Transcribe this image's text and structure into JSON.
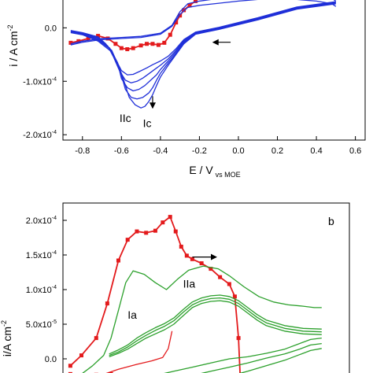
{
  "chart_data": [
    {
      "type": "line",
      "panel_label": "",
      "ylabel": "i / A cm",
      "ylabel_sup": "-2",
      "xlabel": "E / V",
      "xlabel_sub": "vs MOE",
      "xlim": [
        -0.9,
        0.65
      ],
      "ylim": [
        -0.00021,
        5.5e-05
      ],
      "x_ticks": [
        {
          "v": -0.8,
          "label": "-0.8"
        },
        {
          "v": -0.6,
          "label": "-0.6"
        },
        {
          "v": -0.4,
          "label": "-0.4"
        },
        {
          "v": -0.2,
          "label": "-0.2"
        },
        {
          "v": 0.0,
          "label": "0.0"
        },
        {
          "v": 0.2,
          "label": "0.2"
        },
        {
          "v": 0.4,
          "label": "0.4"
        },
        {
          "v": 0.6,
          "label": "0.6"
        }
      ],
      "y_ticks": [
        {
          "v": 0.0,
          "base": "0.0",
          "exp": ""
        },
        {
          "v": -0.0001,
          "base": "-1.0x10",
          "exp": "-4"
        },
        {
          "v": -0.0002,
          "base": "-2.0x10",
          "exp": "-4"
        }
      ],
      "annotations": [
        {
          "text": "IIc",
          "x": -0.61,
          "y": -0.000176
        },
        {
          "text": "Ic",
          "x": -0.49,
          "y": -0.000186
        }
      ],
      "arrows": [
        {
          "x1": -0.04,
          "y1": -2.7e-05,
          "x2": -0.13,
          "y2": -2.7e-05
        },
        {
          "x1": -0.44,
          "y1": -0.000128,
          "x2": -0.44,
          "y2": -0.00015
        }
      ],
      "series": [
        {
          "color": "#e31a1c",
          "marker": "square",
          "x": [
            -0.86,
            -0.82,
            -0.77,
            -0.72,
            -0.67,
            -0.63,
            -0.6,
            -0.57,
            -0.54,
            -0.5,
            -0.47,
            -0.44,
            -0.41,
            -0.38,
            -0.35,
            -0.32,
            -0.3,
            -0.28,
            -0.25,
            -0.22,
            -0.2
          ],
          "y": [
            -2.8e-05,
            -2.5e-05,
            -2e-05,
            -1.5e-05,
            -2e-05,
            -3e-05,
            -3.8e-05,
            -4e-05,
            -3.8e-05,
            -3.3e-05,
            -3e-05,
            -3e-05,
            -3.2e-05,
            -2.8e-05,
            -1.3e-05,
            1e-05,
            2.3e-05,
            3.3e-05,
            4.2e-05,
            5e-05,
            5.6e-05
          ]
        },
        {
          "color": "#1f2fd8",
          "marker": "",
          "x": [
            -0.86,
            -0.8,
            -0.72,
            -0.65,
            -0.6,
            -0.56,
            -0.53,
            -0.5,
            -0.48,
            -0.46,
            -0.44,
            -0.42,
            -0.4,
            -0.36,
            -0.32,
            -0.28,
            -0.22,
            -0.1,
            0.1,
            0.3,
            0.5
          ],
          "y": [
            -9e-06,
            -1.3e-05,
            -2.5e-05,
            -4.5e-05,
            -8.5e-05,
            -0.00013,
            -0.000144,
            -0.00015,
            -0.000147,
            -0.000138,
            -0.000125,
            -0.000108,
            -9.2e-05,
            -7e-05,
            -5e-05,
            -3e-05,
            -1.2e-05,
            -3e-06,
            1.5e-05,
            3.5e-05,
            4.5e-05
          ]
        },
        {
          "color": "#1f2fd8",
          "marker": "",
          "x": [
            -0.86,
            -0.8,
            -0.72,
            -0.65,
            -0.61,
            -0.58,
            -0.55,
            -0.52,
            -0.49,
            -0.46,
            -0.44,
            -0.42,
            -0.4,
            -0.36,
            -0.32,
            -0.28,
            -0.22,
            -0.1,
            0.1,
            0.3,
            0.5
          ],
          "y": [
            -8e-06,
            -1.2e-05,
            -2.3e-05,
            -4.2e-05,
            -7.5e-05,
            -0.000115,
            -0.00013,
            -0.000133,
            -0.00013,
            -0.000122,
            -0.000112,
            -9.8e-05,
            -8.5e-05,
            -6.6e-05,
            -4.8e-05,
            -2.8e-05,
            -1.1e-05,
            -2e-06,
            1.6e-05,
            3.6e-05,
            4.6e-05
          ]
        },
        {
          "color": "#1f2fd8",
          "marker": "",
          "x": [
            -0.86,
            -0.8,
            -0.72,
            -0.66,
            -0.62,
            -0.6,
            -0.57,
            -0.54,
            -0.51,
            -0.48,
            -0.45,
            -0.42,
            -0.4,
            -0.36,
            -0.32,
            -0.28,
            -0.22,
            -0.1,
            0.1,
            0.3,
            0.5
          ],
          "y": [
            -7e-06,
            -1.1e-05,
            -2.1e-05,
            -3.8e-05,
            -6.5e-05,
            -9.5e-05,
            -0.000112,
            -0.000118,
            -0.000115,
            -0.000108,
            -9.8e-05,
            -8.8e-05,
            -7.8e-05,
            -6.2e-05,
            -4.5e-05,
            -2.6e-05,
            -1e-05,
            -1e-06,
            1.7e-05,
            3.7e-05,
            4.7e-05
          ]
        },
        {
          "color": "#1f2fd8",
          "marker": "",
          "x": [
            -0.86,
            -0.8,
            -0.72,
            -0.67,
            -0.64,
            -0.61,
            -0.58,
            -0.55,
            -0.52,
            -0.49,
            -0.46,
            -0.43,
            -0.4,
            -0.36,
            -0.32,
            -0.28,
            -0.22,
            -0.1,
            0.1,
            0.3,
            0.5
          ],
          "y": [
            -6e-06,
            -1e-05,
            -1.9e-05,
            -3.4e-05,
            -5.5e-05,
            -8e-05,
            -9.8e-05,
            -0.000103,
            -0.0001,
            -9.4e-05,
            -8.6e-05,
            -7.8e-05,
            -7e-05,
            -5.8e-05,
            -4.2e-05,
            -2.4e-05,
            -9e-06,
            0.0,
            1.8e-05,
            3.8e-05,
            4.8e-05
          ]
        },
        {
          "color": "#1f2fd8",
          "marker": "",
          "x": [
            -0.86,
            -0.8,
            -0.72,
            -0.68,
            -0.65,
            -0.62,
            -0.6,
            -0.57,
            -0.54,
            -0.51,
            -0.47,
            -0.44,
            -0.4,
            -0.36,
            -0.32,
            -0.28,
            -0.22,
            -0.1,
            0.1,
            0.3,
            0.5
          ],
          "y": [
            -5e-06,
            -9e-06,
            -1.7e-05,
            -3e-05,
            -4.6e-05,
            -6.6e-05,
            -8e-05,
            -8.8e-05,
            -8.7e-05,
            -8.2e-05,
            -7.5e-05,
            -6.9e-05,
            -6.2e-05,
            -5.3e-05,
            -3.9e-05,
            -2.2e-05,
            -8e-06,
            1e-06,
            1.9e-05,
            3.9e-05,
            4.9e-05
          ]
        },
        {
          "color": "#1f2fd8",
          "marker": "",
          "x": [
            0.5,
            0.48,
            0.4,
            0.3,
            0.2,
            0.1,
            0.0,
            -0.1,
            -0.2,
            -0.26,
            -0.3,
            -0.34,
            -0.4,
            -0.5,
            -0.6,
            -0.7,
            -0.8,
            -0.86
          ],
          "y": [
            5e-05,
            5.5e-05,
            6e-05,
            6.2e-05,
            6.3e-05,
            6.2e-05,
            6e-05,
            5.5e-05,
            5e-05,
            4.5e-05,
            3e-05,
            5e-06,
            -1e-05,
            -1.6e-05,
            -1.8e-05,
            -2e-05,
            -2.5e-05,
            -3e-05
          ]
        },
        {
          "color": "#1f2fd8",
          "marker": "",
          "x": [
            0.5,
            0.48,
            0.4,
            0.3,
            0.2,
            0.1,
            0.0,
            -0.1,
            -0.2,
            -0.26,
            -0.3,
            -0.34,
            -0.4,
            -0.5,
            -0.6,
            -0.7,
            -0.8,
            -0.86
          ],
          "y": [
            4e-05,
            4.5e-05,
            5e-05,
            5.3e-05,
            5.4e-05,
            5.3e-05,
            5e-05,
            4.6e-05,
            4.2e-05,
            3.8e-05,
            2.5e-05,
            3e-06,
            -1.2e-05,
            -1.8e-05,
            -2e-05,
            -2.2e-05,
            -2.7e-05,
            -3.2e-05
          ]
        }
      ]
    },
    {
      "type": "line",
      "panel_label": "b",
      "ylabel": "i/A cm",
      "ylabel_sup": "-2",
      "xlabel": "",
      "xlim": [
        -0.9,
        0.65
      ],
      "ylim": [
        -2.5e-05,
        0.000225
      ],
      "y_ticks": [
        {
          "v": 0.0,
          "base": "0.0",
          "exp": ""
        },
        {
          "v": 5e-05,
          "base": "5.0x10",
          "exp": "-5"
        },
        {
          "v": 0.0001,
          "base": "1.0x10",
          "exp": "-4"
        },
        {
          "v": 0.00015,
          "base": "1.5x10",
          "exp": "-4"
        },
        {
          "v": 0.0002,
          "base": "2.0x10",
          "exp": "-4"
        }
      ],
      "annotations": [
        {
          "text": "Ia",
          "x": -0.55,
          "y": 5.8e-05
        },
        {
          "text": "IIa",
          "x": -0.25,
          "y": 0.000103
        }
      ],
      "arrows": [
        {
          "x1": -0.2,
          "y1": 0.000147,
          "x2": -0.07,
          "y2": 0.000147
        }
      ],
      "series": [
        {
          "color": "#e31a1c",
          "marker": "square",
          "x": [
            -0.86,
            -0.8,
            -0.72,
            -0.66,
            -0.6,
            -0.55,
            -0.5,
            -0.45,
            -0.4,
            -0.36,
            -0.32,
            -0.29,
            -0.26,
            -0.23,
            -0.2,
            -0.15,
            -0.1,
            -0.05,
            0.0,
            0.03,
            0.05,
            0.06
          ],
          "y": [
            -1e-05,
            5e-06,
            3e-05,
            8e-05,
            0.000142,
            0.000172,
            0.000184,
            0.000182,
            0.000185,
            0.000197,
            0.000205,
            0.000184,
            0.000162,
            0.000149,
            0.000144,
            0.000138,
            0.00013,
            0.000118,
            0.000108,
            9e-05,
            3e-05,
            -3e-05
          ]
        },
        {
          "color": "#e31a1c",
          "marker": "square",
          "x": [
            -0.86,
            -0.8,
            -0.72,
            -0.64,
            -0.56
          ],
          "y": [
            -2.2e-05,
            -2.5e-05,
            -2.3e-05,
            -2.2e-05,
            -2.5e-05
          ]
        },
        {
          "color": "#e31a1c",
          "marker": "",
          "x": [
            -0.72,
            -0.6,
            -0.5,
            -0.42,
            -0.36,
            -0.33,
            -0.31
          ],
          "y": [
            -2.6e-05,
            -1.5e-05,
            -8e-06,
            -3e-06,
            2e-06,
            1.5e-05,
            4e-05
          ]
        },
        {
          "color": "#2ca02c",
          "marker": "",
          "x": [
            -0.86,
            -0.8,
            -0.74,
            -0.68,
            -0.64,
            -0.6,
            -0.56,
            -0.52,
            -0.46,
            -0.4,
            -0.34,
            -0.28,
            -0.22,
            -0.14,
            -0.06,
            0.0,
            0.08,
            0.16,
            0.24,
            0.32,
            0.4,
            0.46,
            0.5
          ],
          "y": [
            -2.4e-05,
            -2.2e-05,
            -1e-05,
            5e-06,
            3e-05,
            7e-05,
            0.00011,
            0.000127,
            0.000122,
            0.00011,
            0.0001,
            0.000115,
            0.000128,
            0.000134,
            0.00013,
            0.00012,
            0.000104,
            9e-05,
            8.2e-05,
            7.8e-05,
            7.6e-05,
            7.4e-05,
            7.4e-05
          ]
        },
        {
          "color": "#2ca02c",
          "marker": "",
          "x": [
            -0.65,
            -0.6,
            -0.55,
            -0.5,
            -0.45,
            -0.4,
            -0.35,
            -0.3,
            -0.25,
            -0.2,
            -0.15,
            -0.1,
            -0.05,
            0.0,
            0.05,
            0.1,
            0.15,
            0.2,
            0.3,
            0.4,
            0.5
          ],
          "y": [
            3e-06,
            8e-06,
            1.4e-05,
            2.2e-05,
            3e-05,
            3.6e-05,
            4.2e-05,
            5e-05,
            6.2e-05,
            7.4e-05,
            8e-05,
            8.3e-05,
            8.4e-05,
            8.2e-05,
            7.6e-05,
            6.6e-05,
            5.6e-05,
            4.8e-05,
            4e-05,
            3.6e-05,
            3.5e-05
          ]
        },
        {
          "color": "#2ca02c",
          "marker": "",
          "x": [
            -0.65,
            -0.6,
            -0.55,
            -0.5,
            -0.45,
            -0.4,
            -0.35,
            -0.3,
            -0.25,
            -0.2,
            -0.15,
            -0.1,
            -0.05,
            0.0,
            0.05,
            0.1,
            0.15,
            0.2,
            0.3,
            0.4,
            0.5
          ],
          "y": [
            5e-06,
            1e-05,
            1.7e-05,
            2.6e-05,
            3.4e-05,
            4.1e-05,
            4.7e-05,
            5.5e-05,
            6.7e-05,
            7.8e-05,
            8.4e-05,
            8.7e-05,
            8.8e-05,
            8.6e-05,
            8e-05,
            7e-05,
            6e-05,
            5.2e-05,
            4.4e-05,
            4e-05,
            3.9e-05
          ]
        },
        {
          "color": "#2ca02c",
          "marker": "",
          "x": [
            -0.65,
            -0.6,
            -0.55,
            -0.5,
            -0.45,
            -0.4,
            -0.35,
            -0.3,
            -0.25,
            -0.2,
            -0.15,
            -0.1,
            -0.05,
            0.0,
            0.05,
            0.1,
            0.15,
            0.2,
            0.3,
            0.4,
            0.5
          ],
          "y": [
            7e-06,
            1.3e-05,
            2e-05,
            3e-05,
            3.8e-05,
            4.5e-05,
            5.1e-05,
            5.9e-05,
            7.1e-05,
            8.2e-05,
            8.8e-05,
            9.1e-05,
            9.2e-05,
            9e-05,
            8.4e-05,
            7.4e-05,
            6.4e-05,
            5.6e-05,
            4.8e-05,
            4.4e-05,
            4.3e-05
          ]
        },
        {
          "color": "#2ca02c",
          "marker": "",
          "x": [
            0.5,
            0.44,
            0.38,
            0.3,
            0.2,
            0.1,
            0.0,
            -0.1,
            -0.2,
            -0.3,
            -0.4
          ],
          "y": [
            3e-05,
            2.8e-05,
            2.2e-05,
            1.4e-05,
            8e-06,
            3e-06,
            0.0,
            -6e-06,
            -1.2e-05,
            -1.8e-05,
            -2.4e-05
          ]
        },
        {
          "color": "#2ca02c",
          "marker": "",
          "x": [
            0.5,
            0.44,
            0.38,
            0.3,
            0.2,
            0.1,
            0.0,
            -0.1,
            -0.2
          ],
          "y": [
            2.2e-05,
            2e-05,
            1.4e-05,
            7e-06,
            1e-06,
            -6e-06,
            -1.2e-05,
            -1.8e-05,
            -2.4e-05
          ]
        },
        {
          "color": "#2ca02c",
          "marker": "",
          "x": [
            0.5,
            0.44,
            0.38,
            0.3,
            0.2,
            0.1,
            0.0
          ],
          "y": [
            1.5e-05,
            1.2e-05,
            6e-06,
            -2e-06,
            -1e-05,
            -1.8e-05,
            -2.5e-05
          ]
        }
      ]
    }
  ]
}
